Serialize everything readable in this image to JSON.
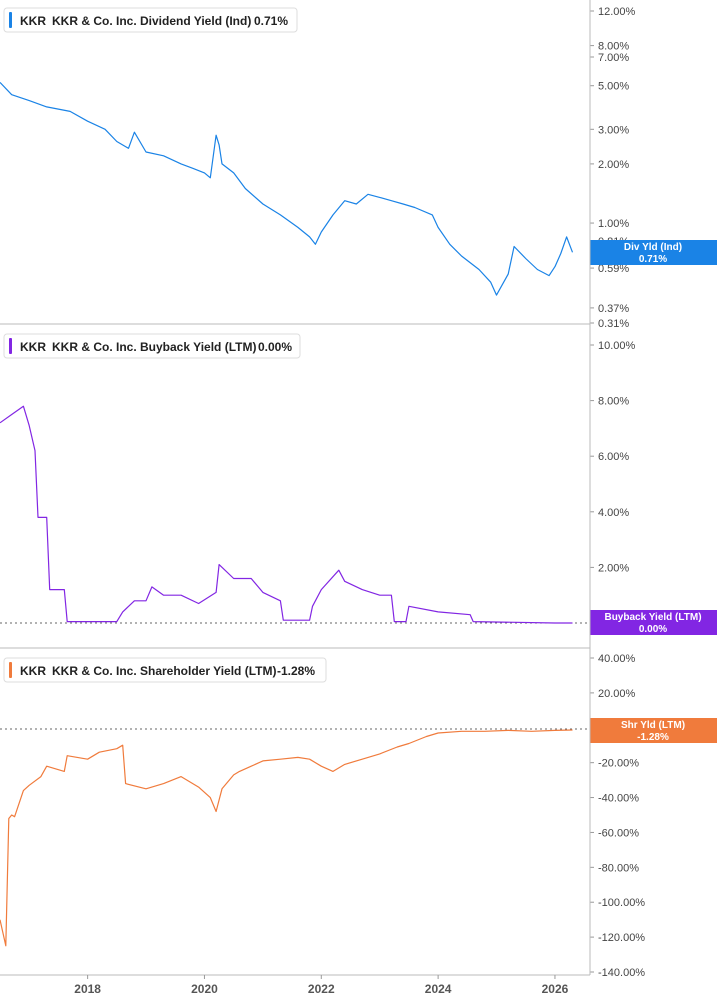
{
  "panels": [
    {
      "ticker": "KKR",
      "company": "KKR & Co. Inc.",
      "metric": "Dividend Yield (Ind)",
      "value_label": "0.71%",
      "tag_label": "Div Yld (Ind)",
      "tag_value": "0.71%",
      "color": "#1a83e6",
      "scale": "log",
      "ylim": [
        0.31,
        12.0
      ],
      "yticks": [
        "12.00%",
        "8.00%",
        "7.00%",
        "5.00%",
        "3.00%",
        "2.00%",
        "1.00%",
        "0.81%",
        "0.59%",
        "0.37%",
        "0.31%"
      ]
    },
    {
      "ticker": "KKR",
      "company": "KKR & Co. Inc.",
      "metric": "Buyback Yield (LTM)",
      "value_label": "0.00%",
      "tag_label": "Buyback Yield (LTM)",
      "tag_value": "0.00%",
      "color": "#8226e3",
      "scale": "linear",
      "ylim": [
        0,
        10
      ],
      "yticks": [
        "10.00%",
        "8.00%",
        "6.00%",
        "4.00%",
        "2.00%"
      ]
    },
    {
      "ticker": "KKR",
      "company": "KKR & Co. Inc.",
      "metric": "Shareholder Yield (LTM)",
      "value_label": "-1.28%",
      "tag_label": "Shr Yld (LTM)",
      "tag_value": "-1.28%",
      "color": "#f07b3c",
      "scale": "linear",
      "ylim": [
        -140,
        40
      ],
      "yticks": [
        "40.00%",
        "20.00%",
        "0.00%",
        "-20.00%",
        "-40.00%",
        "-60.00%",
        "-80.00%",
        "-100.00%",
        "-120.00%",
        "-140.00%"
      ]
    }
  ],
  "x_axis": {
    "labels": [
      "2018",
      "2020",
      "2022",
      "2024",
      "2026"
    ]
  },
  "chart_data": [
    {
      "type": "line",
      "title": "KKR KKR & Co. Inc. Dividend Yield (Ind) 0.71%",
      "ylabel": "",
      "yscale": "log",
      "ylim": [
        0.31,
        12.0
      ],
      "xlim": [
        2016.5,
        2026.6
      ],
      "series": [
        {
          "name": "Dividend Yield (Ind)",
          "x": [
            2016.5,
            2016.7,
            2017.0,
            2017.3,
            2017.7,
            2018.0,
            2018.3,
            2018.5,
            2018.7,
            2018.8,
            2019.0,
            2019.3,
            2019.6,
            2019.8,
            2020.0,
            2020.1,
            2020.2,
            2020.25,
            2020.3,
            2020.5,
            2020.7,
            2021.0,
            2021.3,
            2021.6,
            2021.8,
            2021.9,
            2022.0,
            2022.2,
            2022.4,
            2022.6,
            2022.8,
            2023.0,
            2023.2,
            2023.4,
            2023.6,
            2023.9,
            2024.0,
            2024.2,
            2024.4,
            2024.7,
            2024.9,
            2025.0,
            2025.2,
            2025.3,
            2025.5,
            2025.7,
            2025.9,
            2026.0,
            2026.1,
            2026.2,
            2026.3
          ],
          "y": [
            5.2,
            4.5,
            4.2,
            3.9,
            3.7,
            3.3,
            3.0,
            2.6,
            2.4,
            2.9,
            2.3,
            2.2,
            2.0,
            1.9,
            1.8,
            1.7,
            2.8,
            2.5,
            2.0,
            1.8,
            1.5,
            1.25,
            1.1,
            0.95,
            0.85,
            0.78,
            0.9,
            1.1,
            1.3,
            1.25,
            1.4,
            1.35,
            1.3,
            1.25,
            1.2,
            1.1,
            0.95,
            0.78,
            0.68,
            0.58,
            0.5,
            0.43,
            0.55,
            0.76,
            0.66,
            0.58,
            0.54,
            0.6,
            0.7,
            0.85,
            0.71
          ]
        }
      ]
    },
    {
      "type": "line",
      "title": "KKR KKR & Co. Inc. Buyback Yield (LTM) 0.00%",
      "ylabel": "",
      "ylim": [
        0,
        10
      ],
      "xlim": [
        2016.5,
        2026.6
      ],
      "series": [
        {
          "name": "Buyback Yield (LTM)",
          "x": [
            2016.5,
            2016.7,
            2016.9,
            2017.0,
            2017.1,
            2017.15,
            2017.3,
            2017.35,
            2017.6,
            2017.65,
            2018.5,
            2018.6,
            2018.8,
            2019.0,
            2019.1,
            2019.3,
            2019.6,
            2019.9,
            2020.2,
            2020.25,
            2020.5,
            2020.8,
            2021.0,
            2021.3,
            2021.35,
            2021.8,
            2021.85,
            2022.0,
            2022.3,
            2022.4,
            2022.7,
            2023.0,
            2023.2,
            2023.25,
            2023.45,
            2023.5,
            2024.0,
            2024.55,
            2024.6,
            2026.0,
            2026.3
          ],
          "y": [
            7.2,
            7.5,
            7.8,
            7.1,
            6.2,
            3.8,
            3.8,
            1.2,
            1.2,
            0.05,
            0.05,
            0.4,
            0.8,
            0.8,
            1.3,
            1.0,
            1.0,
            0.7,
            1.1,
            2.1,
            1.6,
            1.6,
            1.1,
            0.8,
            0.1,
            0.1,
            0.6,
            1.2,
            1.9,
            1.5,
            1.2,
            1.0,
            1.0,
            0.05,
            0.05,
            0.6,
            0.4,
            0.3,
            0.05,
            0.0,
            0.0
          ]
        }
      ]
    },
    {
      "type": "line",
      "title": "KKR KKR & Co. Inc. Shareholder Yield (LTM) -1.28%",
      "ylabel": "",
      "ylim": [
        -140,
        40
      ],
      "xlim": [
        2016.5,
        2026.6
      ],
      "series": [
        {
          "name": "Shareholder Yield (LTM)",
          "x": [
            2016.5,
            2016.6,
            2016.65,
            2016.7,
            2016.75,
            2016.9,
            2017.0,
            2017.2,
            2017.3,
            2017.6,
            2017.65,
            2018.0,
            2018.2,
            2018.5,
            2018.6,
            2018.65,
            2019.0,
            2019.3,
            2019.6,
            2019.9,
            2020.1,
            2020.2,
            2020.3,
            2020.5,
            2020.6,
            2020.8,
            2021.0,
            2021.3,
            2021.6,
            2021.8,
            2022.0,
            2022.2,
            2022.4,
            2022.7,
            2023.0,
            2023.3,
            2023.5,
            2023.8,
            2024.0,
            2024.4,
            2024.8,
            2025.2,
            2025.6,
            2026.0,
            2026.3
          ],
          "y": [
            -110,
            -125,
            -52,
            -50,
            -51,
            -36,
            -33,
            -28,
            -22,
            -25,
            -16,
            -18,
            -14,
            -12,
            -10,
            -32,
            -35,
            -32,
            -28,
            -34,
            -40,
            -48,
            -35,
            -27,
            -25,
            -22,
            -19,
            -18,
            -17,
            -18,
            -22,
            -25,
            -21,
            -18,
            -15,
            -11,
            -9,
            -5,
            -3,
            -2,
            -2,
            -1.5,
            -2,
            -1.5,
            -1.28
          ]
        }
      ]
    }
  ]
}
